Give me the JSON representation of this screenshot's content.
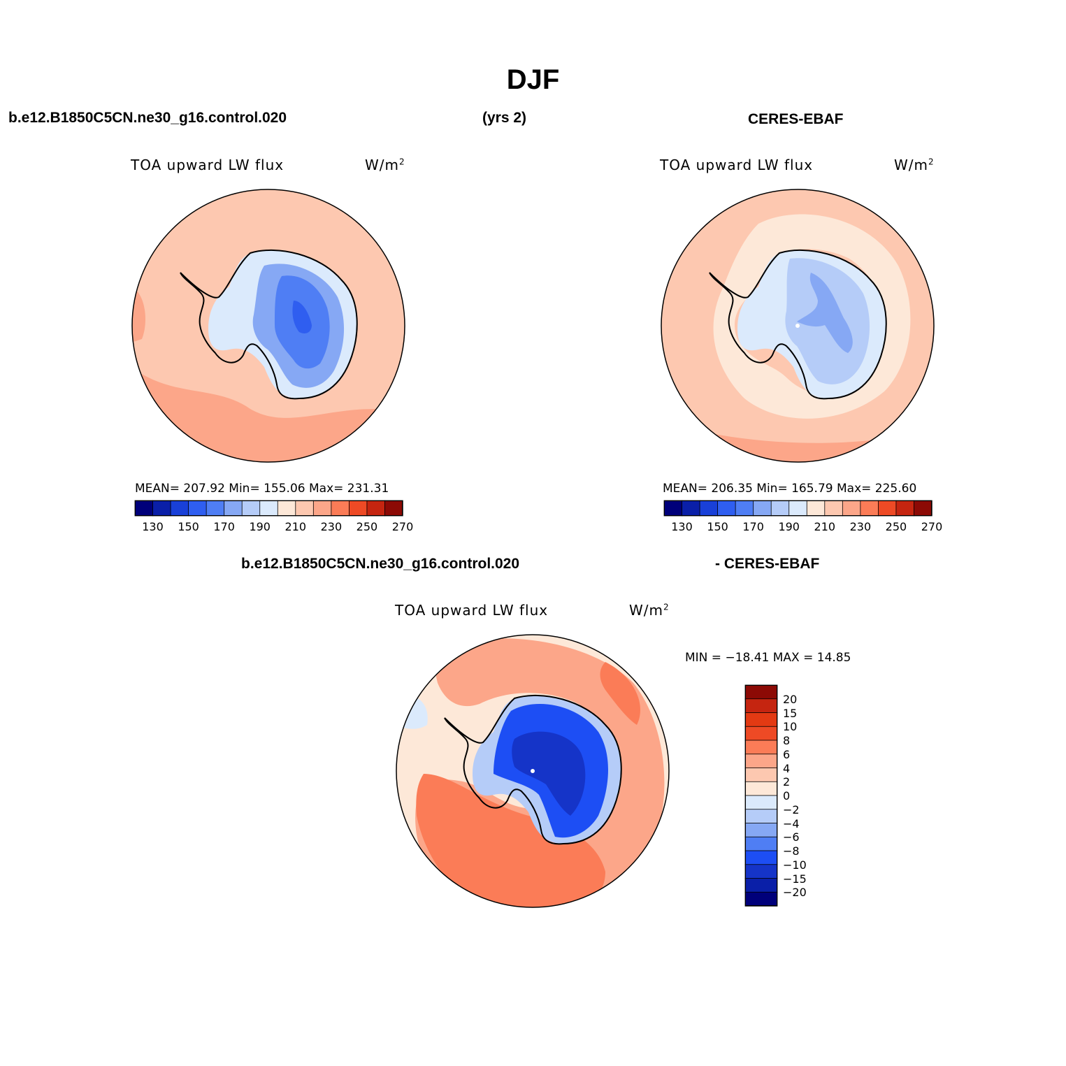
{
  "figure": {
    "title": "DJF"
  },
  "header": {
    "case_name": "b.e12.B1850C5CN.ne30_g16.control.020",
    "years": "(yrs 2)",
    "obs_name": "CERES-EBAF"
  },
  "diff_header": {
    "left": "b.e12.B1850C5CN.ne30_g16.control.020",
    "right": "- CERES-EBAF"
  },
  "panels": [
    {
      "variable": "TOA upward LW flux",
      "units_base": "W/m",
      "units_exp": "2",
      "stats": "MEAN= 207.92   Min= 155.06   Max= 231.31",
      "colorbar_ticks": [
        "130",
        "150",
        "170",
        "190",
        "210",
        "230",
        "250",
        "270"
      ]
    },
    {
      "variable": "TOA upward LW flux",
      "units_base": "W/m",
      "units_exp": "2",
      "stats": "MEAN= 206.35   Min= 165.79   Max= 225.60",
      "colorbar_ticks": [
        "130",
        "150",
        "170",
        "190",
        "210",
        "230",
        "250",
        "270"
      ]
    },
    {
      "variable": "TOA upward LW flux",
      "units_base": "W/m",
      "units_exp": "2",
      "stats": "MIN = −18.41  MAX =   14.85",
      "colorbar_ticks": [
        "20",
        "15",
        "10",
        "8",
        "6",
        "4",
        "2",
        "0",
        "−2",
        "−4",
        "−6",
        "−8",
        "−10",
        "−15",
        "−20"
      ]
    }
  ],
  "colors": {
    "abs_scale": [
      "#00007a",
      "#0a1fa8",
      "#1940d8",
      "#2f5ef0",
      "#4f7ef4",
      "#86a8f4",
      "#b5ccf8",
      "#dbeafc",
      "#fde8d8",
      "#fdc8b0",
      "#fca689",
      "#fb7c57",
      "#ee4a25",
      "#c52510",
      "#8c0a05"
    ],
    "diff_scale": [
      "#00007a",
      "#0a1fa8",
      "#1534c8",
      "#1d4ef4",
      "#4f7ef4",
      "#86a8f4",
      "#b5ccf8",
      "#dbeafc",
      "#fde8d8",
      "#fdc8b0",
      "#fca689",
      "#fb7c57",
      "#ee4a25",
      "#e33a13",
      "#c52510",
      "#8c0a05"
    ]
  },
  "chart_data": [
    {
      "type": "heatmap",
      "title": "TOA upward LW flux",
      "subtitle": "b.e12.B1850C5CN.ne30_g16.control.020 (yrs 2)",
      "projection": "south polar stereographic",
      "units": "W/m2",
      "mean": 207.92,
      "min": 155.06,
      "max": 231.31,
      "contour_levels": [
        130,
        140,
        150,
        160,
        170,
        180,
        190,
        200,
        210,
        220,
        230,
        240,
        250,
        260,
        270
      ]
    },
    {
      "type": "heatmap",
      "title": "TOA upward LW flux",
      "subtitle": "CERES-EBAF",
      "projection": "south polar stereographic",
      "units": "W/m2",
      "mean": 206.35,
      "min": 165.79,
      "max": 225.6,
      "contour_levels": [
        130,
        140,
        150,
        160,
        170,
        180,
        190,
        200,
        210,
        220,
        230,
        240,
        250,
        260,
        270
      ]
    },
    {
      "type": "heatmap",
      "title": "TOA upward LW flux",
      "subtitle": "b.e12.B1850C5CN.ne30_g16.control.020 - CERES-EBAF",
      "projection": "south polar stereographic",
      "units": "W/m2",
      "min": -18.41,
      "max": 14.85,
      "contour_levels": [
        -20,
        -15,
        -10,
        -8,
        -6,
        -4,
        -2,
        0,
        2,
        4,
        6,
        8,
        10,
        15,
        20
      ]
    }
  ]
}
